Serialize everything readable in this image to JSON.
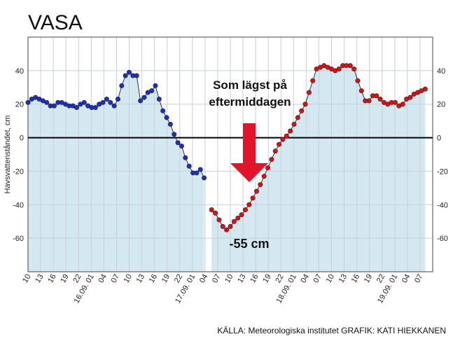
{
  "page": {
    "title": "VASA",
    "source": "KÄLLA: Meteorologiska institutet GRAFIK: KATI HIEKKANEN"
  },
  "chart_data": {
    "type": "line",
    "title": "VASA",
    "ylabel": "Havsvattenståndet, cm",
    "xlabel": "",
    "ylim": [
      -80,
      60
    ],
    "yticks": [
      40,
      20,
      0,
      -20,
      -40,
      -60
    ],
    "grid": true,
    "x_ticks": [
      "10",
      "13",
      "16",
      "19",
      "22",
      "16.09. 01",
      "04",
      "07",
      "10",
      "13",
      "16",
      "19",
      "22",
      "17.09. 01",
      "04",
      "07",
      "10",
      "13",
      "16",
      "19",
      "22",
      "18.09. 01",
      "04",
      "07",
      "10",
      "13",
      "16",
      "19",
      "22",
      "19.09. 01",
      "04",
      "07"
    ],
    "series": [
      {
        "color": "#1a2fc8",
        "x": [
          10,
          11,
          12,
          13,
          14,
          15,
          16,
          17,
          18,
          19,
          20,
          21,
          22,
          23,
          24,
          25,
          26,
          27,
          28,
          29,
          30,
          31,
          32,
          33,
          34,
          35,
          36,
          37,
          38,
          39,
          40,
          41,
          42,
          43,
          44,
          45,
          46,
          47,
          48,
          49,
          50,
          51,
          52,
          53,
          54,
          55,
          56,
          57
        ],
        "y": [
          21,
          23,
          24,
          23,
          22,
          21,
          19,
          19,
          21,
          21,
          20,
          19,
          19,
          18,
          20,
          21,
          19,
          18,
          18,
          20,
          21,
          23,
          21,
          19,
          23,
          31,
          37,
          39,
          37,
          37,
          22,
          24,
          27,
          28,
          31,
          23,
          16,
          12,
          8,
          2,
          -3,
          -5,
          -12,
          -17,
          -21,
          -21,
          -19,
          -24
        ]
      },
      {
        "color": "#e01010",
        "x": [
          59,
          60,
          61,
          62,
          63,
          64,
          65,
          66,
          67,
          68,
          69,
          70,
          71,
          72,
          73,
          74,
          75,
          76,
          77,
          78,
          79,
          80,
          81,
          82,
          83,
          84,
          85,
          86,
          87,
          88,
          89,
          90,
          91,
          92,
          93,
          94,
          95,
          96,
          97,
          98,
          99,
          100,
          101,
          102,
          103,
          104,
          105,
          106,
          107,
          108,
          109,
          110,
          111,
          112,
          113,
          114,
          115,
          116
        ],
        "y": [
          -43,
          -45,
          -49,
          -53,
          -55,
          -53,
          -50,
          -48,
          -46,
          -43,
          -40,
          -36,
          -32,
          -28,
          -23,
          -18,
          -13,
          -8,
          -4,
          -1,
          1,
          4,
          8,
          12,
          16,
          20,
          27,
          34,
          41,
          42,
          43,
          42,
          41,
          40,
          41,
          43,
          43,
          43,
          41,
          34,
          28,
          22,
          22,
          25,
          25,
          23,
          21,
          20,
          21,
          21,
          19,
          20,
          23,
          24,
          26,
          27,
          28,
          29
        ]
      }
    ],
    "annotations": [
      {
        "text_line1": "Som lägst på",
        "text_line2": "eftermiddagen",
        "arrow": "down"
      },
      {
        "text": "-55 cm"
      }
    ]
  },
  "style": {
    "area_fill": "#d4e8f2",
    "grid_color": "#c8cfd6",
    "zero_line": "#000000",
    "arrow_color": "#e3132b",
    "blue_marker": "#1a2fc8",
    "red_marker": "#e01010"
  }
}
